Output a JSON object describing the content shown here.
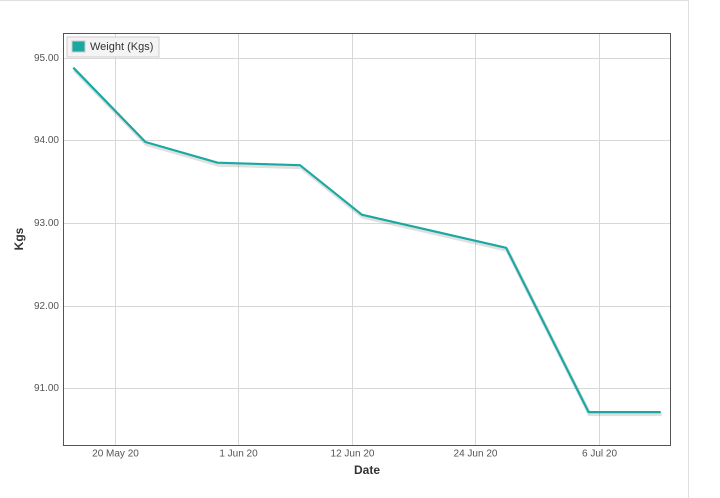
{
  "chart_data": {
    "type": "line",
    "x_label": "Date",
    "y_label": "Kgs",
    "x": [
      "2020-05-16",
      "2020-05-23",
      "2020-05-30",
      "2020-06-07",
      "2020-06-13",
      "2020-06-27",
      "2020-07-05",
      "2020-07-12"
    ],
    "series": [
      {
        "name": "Weight (Kgs)",
        "color": "#1aa9a2",
        "values": [
          94.88,
          93.98,
          93.73,
          93.7,
          93.1,
          92.7,
          90.71,
          90.71
        ]
      }
    ],
    "xlim": [
      "2020-05-15",
      "2020-07-13"
    ],
    "xticks": [
      {
        "value": "2020-05-20",
        "label": "20 May 20"
      },
      {
        "value": "2020-06-01",
        "label": "1 Jun 20"
      },
      {
        "value": "2020-06-12",
        "label": "12 Jun 20"
      },
      {
        "value": "2020-06-24",
        "label": "24 Jun 20"
      },
      {
        "value": "2020-07-06",
        "label": "6 Jul 20"
      }
    ],
    "ylim": [
      90.3,
      95.3
    ],
    "yticks": [
      {
        "value": 91,
        "label": "91.00"
      },
      {
        "value": 92,
        "label": "92.00"
      },
      {
        "value": 93,
        "label": "93.00"
      },
      {
        "value": 94,
        "label": "94.00"
      },
      {
        "value": 95,
        "label": "95.00"
      }
    ],
    "grid": true,
    "legend_position": "top-left"
  }
}
